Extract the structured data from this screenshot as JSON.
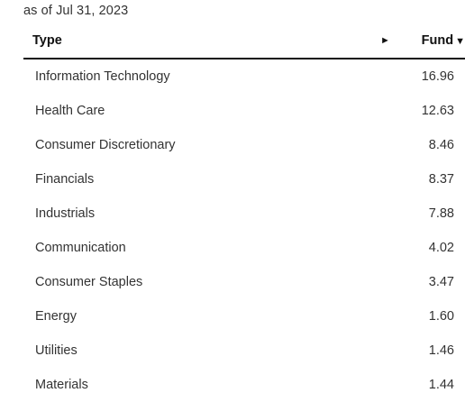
{
  "as_of": "as of Jul 31, 2023",
  "table": {
    "header": {
      "type_label": "Type",
      "expand_arrow": "►",
      "fund_label": "Fund",
      "sort_arrow": "▼"
    },
    "rows": [
      {
        "type": "Information Technology",
        "fund": "16.96"
      },
      {
        "type": "Health Care",
        "fund": "12.63"
      },
      {
        "type": "Consumer Discretionary",
        "fund": "8.46"
      },
      {
        "type": "Financials",
        "fund": "8.37"
      },
      {
        "type": "Industrials",
        "fund": "7.88"
      },
      {
        "type": "Communication",
        "fund": "4.02"
      },
      {
        "type": "Consumer Staples",
        "fund": "3.47"
      },
      {
        "type": "Energy",
        "fund": "1.60"
      },
      {
        "type": "Utilities",
        "fund": "1.46"
      },
      {
        "type": "Materials",
        "fund": "1.44"
      }
    ]
  }
}
